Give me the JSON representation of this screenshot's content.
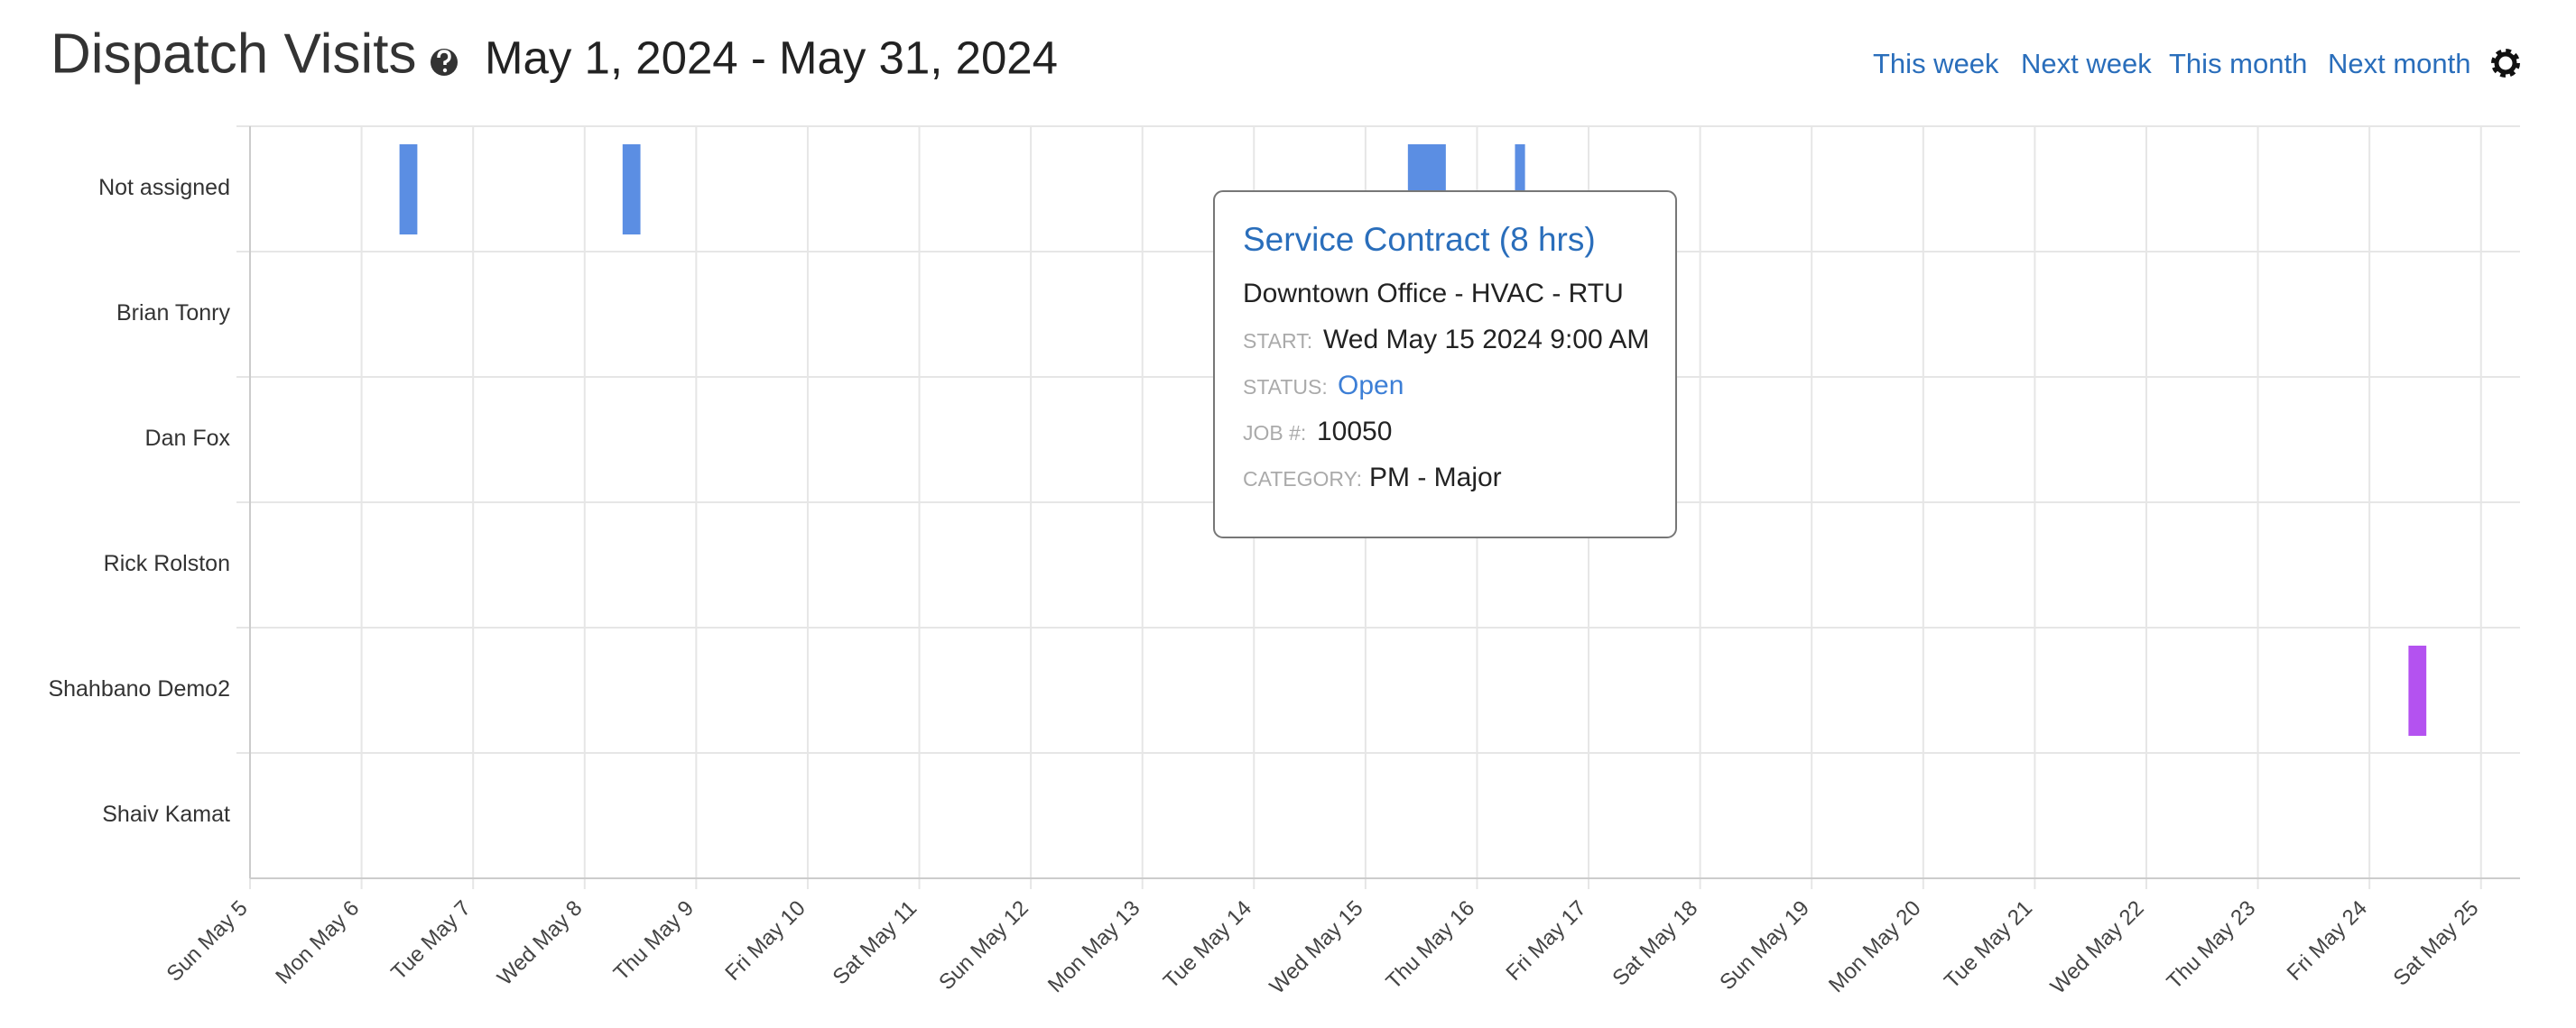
{
  "header": {
    "title": "Dispatch Visits",
    "date_range": "May 1, 2024 - May 31, 2024"
  },
  "nav": [
    "This week",
    "Next week",
    "This month",
    "Next month"
  ],
  "timeline": {
    "rows": [
      "Not assigned",
      "Brian Tonry",
      "Dan Fox",
      "Rick Rolston",
      "Shahbano Demo2",
      "Shaiv Kamat"
    ],
    "xlim": [
      5,
      25.35
    ],
    "xticks": [
      {
        "value": 5,
        "label": "Sun May 5"
      },
      {
        "value": 6,
        "label": "Mon May 6"
      },
      {
        "value": 7,
        "label": "Tue May 7"
      },
      {
        "value": 8,
        "label": "Wed May 8"
      },
      {
        "value": 9,
        "label": "Thu May 9"
      },
      {
        "value": 10,
        "label": "Fri May 10"
      },
      {
        "value": 11,
        "label": "Sat May 11"
      },
      {
        "value": 12,
        "label": "Sun May 12"
      },
      {
        "value": 13,
        "label": "Mon May 13"
      },
      {
        "value": 14,
        "label": "Tue May 14"
      },
      {
        "value": 15,
        "label": "Wed May 15"
      },
      {
        "value": 16,
        "label": "Thu May 16"
      },
      {
        "value": 17,
        "label": "Fri May 17"
      },
      {
        "value": 18,
        "label": "Sat May 18"
      },
      {
        "value": 19,
        "label": "Sun May 19"
      },
      {
        "value": 20,
        "label": "Mon May 20"
      },
      {
        "value": 21,
        "label": "Tue May 21"
      },
      {
        "value": 22,
        "label": "Wed May 22"
      },
      {
        "value": 23,
        "label": "Thu May 23"
      },
      {
        "value": 24,
        "label": "Fri May 24"
      },
      {
        "value": 25,
        "label": "Sat May 25"
      }
    ],
    "events": [
      {
        "row": 0,
        "start": 6.34,
        "end": 6.5,
        "color": "#5b8ee3"
      },
      {
        "row": 0,
        "start": 8.34,
        "end": 8.5,
        "color": "#5b8ee3"
      },
      {
        "row": 0,
        "start": 15.38,
        "end": 15.72,
        "color": "#5b8ee3"
      },
      {
        "row": 0,
        "start": 16.34,
        "end": 16.43,
        "color": "#5b8ee3"
      },
      {
        "row": 4,
        "start": 24.35,
        "end": 24.51,
        "color": "#b452f0"
      }
    ]
  },
  "tooltip": {
    "title": "Service Contract (8 hrs)",
    "location": "Downtown Office - HVAC - RTU",
    "fields": [
      {
        "label": "START:",
        "value": "Wed May 15 2024 9:00 AM"
      },
      {
        "label": "STATUS:",
        "value": "Open"
      },
      {
        "label": "JOB #:",
        "value": "10050"
      },
      {
        "label": "CATEGORY:",
        "value": "PM - Major"
      }
    ]
  }
}
